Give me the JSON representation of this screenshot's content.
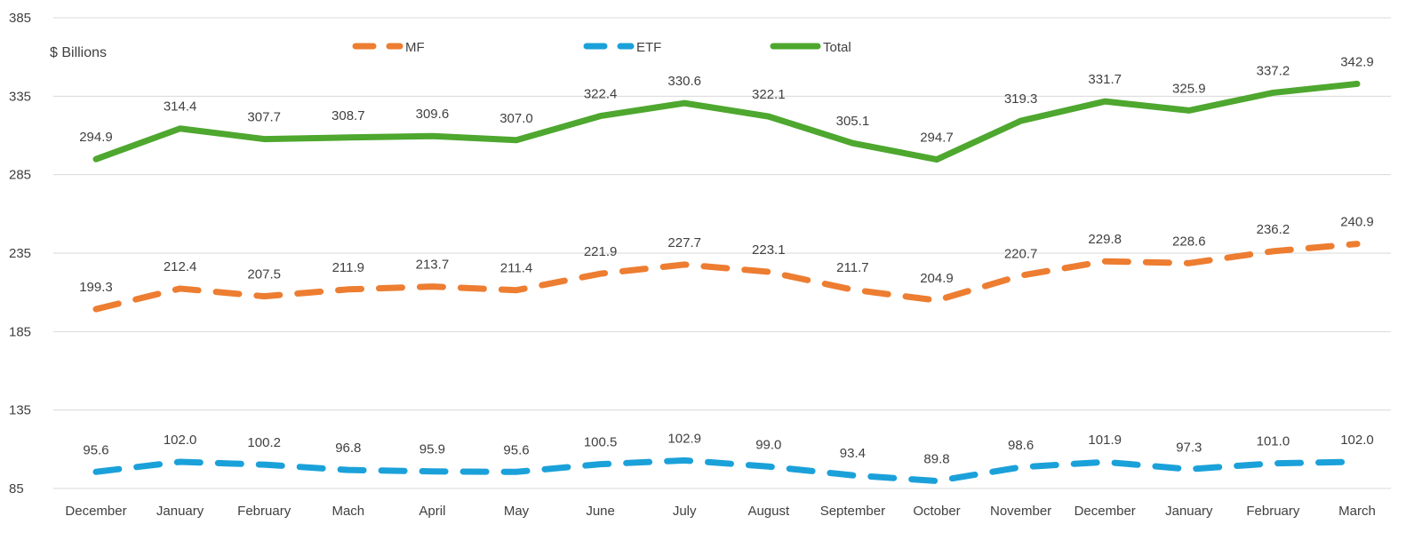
{
  "chart_data": {
    "type": "line",
    "ylabel": "$ Billions",
    "ylim": [
      85,
      385
    ],
    "yticks": [
      "85",
      "135",
      "185",
      "235",
      "285",
      "335",
      "385"
    ],
    "grid": true,
    "legend_position": "top",
    "categories": [
      "December",
      "January",
      "February",
      "Mach",
      "April",
      "May",
      "June",
      "July",
      "August",
      "September",
      "October",
      "November",
      "December",
      "January",
      "February",
      "March"
    ],
    "series": [
      {
        "name": "MF",
        "color": "#ED7D31",
        "style": "dashed",
        "values": [
          199.3,
          212.4,
          207.5,
          211.9,
          213.7,
          211.4,
          221.9,
          227.7,
          223.1,
          211.7,
          204.9,
          220.7,
          229.8,
          228.6,
          236.2,
          240.9
        ],
        "labels": [
          "199.3",
          "212.4",
          "207.5",
          "211.9",
          "213.7",
          "211.4",
          "221.9",
          "227.7",
          "223.1",
          "211.7",
          "204.9",
          "220.7",
          "229.8",
          "228.6",
          "236.2",
          "240.9"
        ]
      },
      {
        "name": "ETF",
        "color": "#1BA1D9",
        "style": "dashed",
        "values": [
          95.6,
          102.0,
          100.2,
          96.8,
          95.9,
          95.6,
          100.5,
          102.9,
          99.0,
          93.4,
          89.8,
          98.6,
          101.9,
          97.3,
          101.0,
          102.0
        ],
        "labels": [
          "95.6",
          "102.0",
          "100.2",
          "96.8",
          "95.9",
          "95.6",
          "100.5",
          "102.9",
          "99.0",
          "93.4",
          "89.8",
          "98.6",
          "101.9",
          "97.3",
          "101.0",
          "102.0"
        ]
      },
      {
        "name": "Total",
        "color": "#4EA72E",
        "style": "solid",
        "values": [
          294.9,
          314.4,
          307.7,
          308.7,
          309.6,
          307.0,
          322.4,
          330.6,
          322.1,
          305.1,
          294.7,
          319.3,
          331.7,
          325.9,
          337.2,
          342.9
        ],
        "labels": [
          "294.9",
          "314.4",
          "307.7",
          "308.7",
          "309.6",
          "307.0",
          "322.4",
          "330.6",
          "322.1",
          "305.1",
          "294.7",
          "319.3",
          "331.7",
          "325.9",
          "337.2",
          "342.9"
        ]
      }
    ]
  }
}
